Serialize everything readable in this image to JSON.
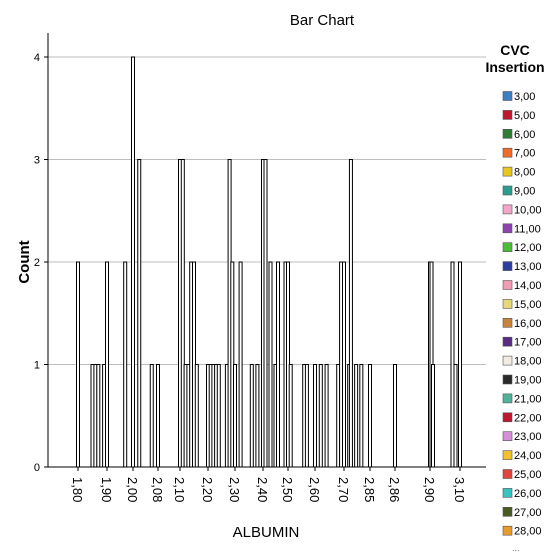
{
  "chart_data": {
    "type": "bar",
    "title": "Bar Chart",
    "xlabel": "ALBUMIN",
    "ylabel": "Count",
    "ylim": [
      0,
      4
    ],
    "yticks": [
      0,
      1,
      2,
      3,
      4
    ],
    "grid": true,
    "legend_placement": "right",
    "legend_title": [
      "CVC",
      "Insertion"
    ],
    "x_tick_labels": [
      "1,80",
      "1,90",
      "2,00",
      "2,08",
      "2,10",
      "2,20",
      "2,30",
      "2,40",
      "2,50",
      "2,60",
      "2,70",
      "2,85",
      "2,86",
      "2,90",
      "3,10"
    ],
    "legend": [
      {
        "label": "3,00",
        "color": "#3e7ec2"
      },
      {
        "label": "5,00",
        "color": "#c0182c"
      },
      {
        "label": "6,00",
        "color": "#2e7d32"
      },
      {
        "label": "7,00",
        "color": "#f06a2a"
      },
      {
        "label": "8,00",
        "color": "#e8c81e"
      },
      {
        "label": "9,00",
        "color": "#2a9d8f"
      },
      {
        "label": "10,00",
        "color": "#f4a6c8"
      },
      {
        "label": "11,00",
        "color": "#8e44ad"
      },
      {
        "label": "12,00",
        "color": "#4cbb3c"
      },
      {
        "label": "13,00",
        "color": "#2d3e9e"
      },
      {
        "label": "14,00",
        "color": "#f19bb5"
      },
      {
        "label": "15,00",
        "color": "#e8d77a"
      },
      {
        "label": "16,00",
        "color": "#c8843c"
      },
      {
        "label": "17,00",
        "color": "#5b2c83"
      },
      {
        "label": "18,00",
        "color": "#f0ece0"
      },
      {
        "label": "19,00",
        "color": "#2a2a2a"
      },
      {
        "label": "21,00",
        "color": "#4fb39a"
      },
      {
        "label": "22,00",
        "color": "#c0182c"
      },
      {
        "label": "23,00",
        "color": "#d58fd8"
      },
      {
        "label": "24,00",
        "color": "#f2c12e"
      },
      {
        "label": "25,00",
        "color": "#e2453c"
      },
      {
        "label": "26,00",
        "color": "#39c4c4"
      },
      {
        "label": "27,00",
        "color": "#4a5a24"
      },
      {
        "label": "28,00",
        "color": "#e89a2a"
      }
    ],
    "legend_more": "...",
    "bars": [
      {
        "x": 1.8,
        "value": 2
      },
      {
        "x": 1.85,
        "value": 1
      },
      {
        "x": 1.86,
        "value": 1
      },
      {
        "x": 1.87,
        "value": 1
      },
      {
        "x": 1.89,
        "value": 1
      },
      {
        "x": 1.9,
        "value": 2
      },
      {
        "x": 1.97,
        "value": 2
      },
      {
        "x": 2.0,
        "value": 4
      },
      {
        "x": 2.02,
        "value": 3
      },
      {
        "x": 2.06,
        "value": 1
      },
      {
        "x": 2.08,
        "value": 1
      },
      {
        "x": 2.1,
        "value": 3
      },
      {
        "x": 2.11,
        "value": 3
      },
      {
        "x": 2.12,
        "value": 1
      },
      {
        "x": 2.13,
        "value": 1
      },
      {
        "x": 2.14,
        "value": 2
      },
      {
        "x": 2.15,
        "value": 2
      },
      {
        "x": 2.16,
        "value": 1
      },
      {
        "x": 2.2,
        "value": 1
      },
      {
        "x": 2.21,
        "value": 1
      },
      {
        "x": 2.22,
        "value": 1
      },
      {
        "x": 2.23,
        "value": 1
      },
      {
        "x": 2.24,
        "value": 1
      },
      {
        "x": 2.27,
        "value": 1
      },
      {
        "x": 2.28,
        "value": 3
      },
      {
        "x": 2.29,
        "value": 2
      },
      {
        "x": 2.3,
        "value": 1
      },
      {
        "x": 2.32,
        "value": 2
      },
      {
        "x": 2.36,
        "value": 1
      },
      {
        "x": 2.38,
        "value": 1
      },
      {
        "x": 2.4,
        "value": 3
      },
      {
        "x": 2.41,
        "value": 3
      },
      {
        "x": 2.43,
        "value": 2
      },
      {
        "x": 2.45,
        "value": 1
      },
      {
        "x": 2.46,
        "value": 2
      },
      {
        "x": 2.49,
        "value": 2
      },
      {
        "x": 2.5,
        "value": 2
      },
      {
        "x": 2.51,
        "value": 1
      },
      {
        "x": 2.56,
        "value": 1
      },
      {
        "x": 2.57,
        "value": 1
      },
      {
        "x": 2.6,
        "value": 1
      },
      {
        "x": 2.62,
        "value": 1
      },
      {
        "x": 2.64,
        "value": 1
      },
      {
        "x": 2.68,
        "value": 1
      },
      {
        "x": 2.69,
        "value": 2
      },
      {
        "x": 2.7,
        "value": 2
      },
      {
        "x": 2.73,
        "value": 1
      },
      {
        "x": 2.74,
        "value": 3
      },
      {
        "x": 2.77,
        "value": 1
      },
      {
        "x": 2.8,
        "value": 1
      },
      {
        "x": 2.85,
        "value": 1
      },
      {
        "x": 2.86,
        "value": 1
      },
      {
        "x": 2.9,
        "value": 2
      },
      {
        "x": 2.91,
        "value": 2
      },
      {
        "x": 2.92,
        "value": 1
      },
      {
        "x": 3.05,
        "value": 2
      },
      {
        "x": 3.07,
        "value": 1
      },
      {
        "x": 3.1,
        "value": 2
      }
    ]
  }
}
